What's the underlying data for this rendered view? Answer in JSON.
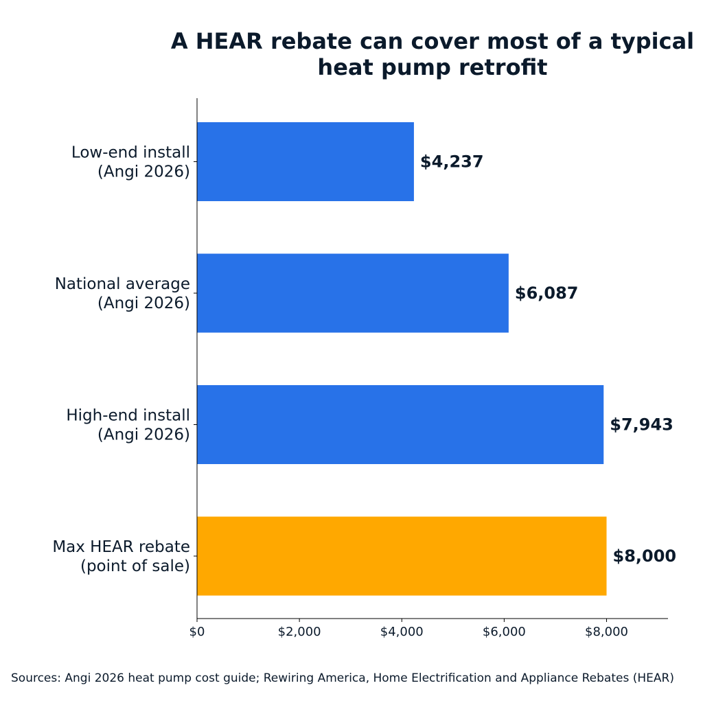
{
  "chart_data": {
    "type": "bar",
    "orientation": "horizontal",
    "title_lines": [
      "A HEAR rebate can cover most of a typical",
      "heat pump retrofit"
    ],
    "categories": [
      [
        "Low-end install",
        "(Angi 2026)"
      ],
      [
        "National average",
        "(Angi 2026)"
      ],
      [
        "High-end install",
        "(Angi 2026)"
      ],
      [
        "Max HEAR rebate",
        "(point of sale)"
      ]
    ],
    "values": [
      4237,
      6087,
      7943,
      8000
    ],
    "value_labels": [
      "$4,237",
      "$6,087",
      "$7,943",
      "$8,000"
    ],
    "bar_colors": [
      "#2872e8",
      "#2872e8",
      "#2872e8",
      "#ffa800"
    ],
    "xlim": [
      0,
      9200
    ],
    "xticks": [
      0,
      2000,
      4000,
      6000,
      8000
    ],
    "xtick_labels": [
      "$0",
      "$2,000",
      "$4,000",
      "$6,000",
      "$8,000"
    ],
    "xlabel": "",
    "ylabel": "",
    "grid": false,
    "source": "Sources: Angi 2026 heat pump cost guide; Rewiring America, Home Electrification and Appliance Rebates (HEAR)"
  }
}
